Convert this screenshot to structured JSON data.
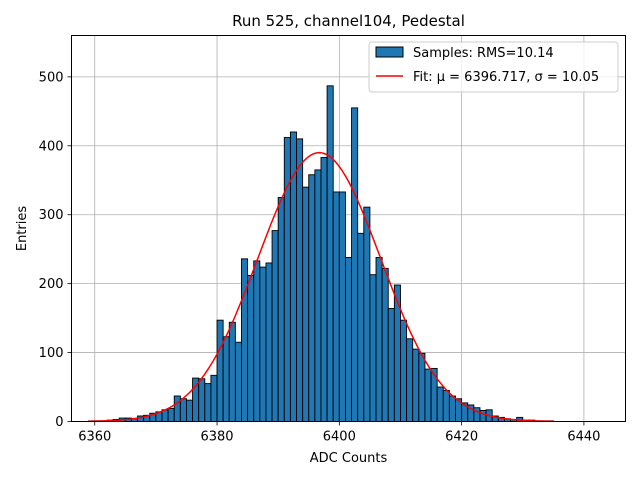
{
  "chart_data": {
    "type": "bar",
    "title": "Run 525, channel104, Pedestal",
    "xlabel": "ADC Counts",
    "ylabel": "Entries",
    "xlim": [
      6356.2,
      6446.8
    ],
    "ylim": [
      0,
      560
    ],
    "xticks": [
      6360,
      6380,
      6400,
      6420,
      6440
    ],
    "yticks": [
      0,
      100,
      200,
      300,
      400,
      500
    ],
    "grid": true,
    "legend_position": "top-right",
    "bin_width": 1,
    "bins": {
      "x_start": [
        6359,
        6360,
        6361,
        6362,
        6363,
        6364,
        6365,
        6366,
        6367,
        6368,
        6369,
        6370,
        6371,
        6372,
        6373,
        6374,
        6375,
        6376,
        6377,
        6378,
        6379,
        6380,
        6381,
        6382,
        6383,
        6384,
        6385,
        6386,
        6387,
        6388,
        6389,
        6390,
        6391,
        6392,
        6393,
        6394,
        6395,
        6396,
        6397,
        6398,
        6399,
        6400,
        6401,
        6402,
        6403,
        6404,
        6405,
        6406,
        6407,
        6408,
        6409,
        6410,
        6411,
        6412,
        6413,
        6414,
        6415,
        6416,
        6417,
        6418,
        6419,
        6420,
        6421,
        6422,
        6423,
        6424,
        6425,
        6426,
        6427,
        6428,
        6429,
        6430,
        6431,
        6432,
        6433,
        6434
      ],
      "counts": [
        1,
        1,
        1,
        2,
        3,
        5,
        5,
        4,
        8,
        9,
        12,
        14,
        17,
        19,
        37,
        33,
        31,
        63,
        62,
        55,
        67,
        147,
        123,
        144,
        115,
        236,
        212,
        233,
        224,
        230,
        277,
        325,
        412,
        420,
        410,
        340,
        358,
        365,
        383,
        487,
        333,
        333,
        238,
        455,
        273,
        311,
        213,
        238,
        222,
        164,
        198,
        147,
        120,
        105,
        99,
        76,
        77,
        50,
        45,
        37,
        33,
        27,
        24,
        20,
        16,
        17,
        8,
        6,
        4,
        3,
        6,
        2,
        2,
        1,
        1,
        1
      ]
    },
    "series": [
      {
        "name": "Samples: RMS=10.14",
        "type": "histogram",
        "color": "#1f77b4"
      },
      {
        "name": "Fit: μ = 6396.717, σ = 10.05",
        "type": "line",
        "color": "#ff0000",
        "mu": 6396.717,
        "sigma": 10.05,
        "amplitude": 390,
        "x_range": [
          6359,
          6435
        ]
      }
    ]
  }
}
